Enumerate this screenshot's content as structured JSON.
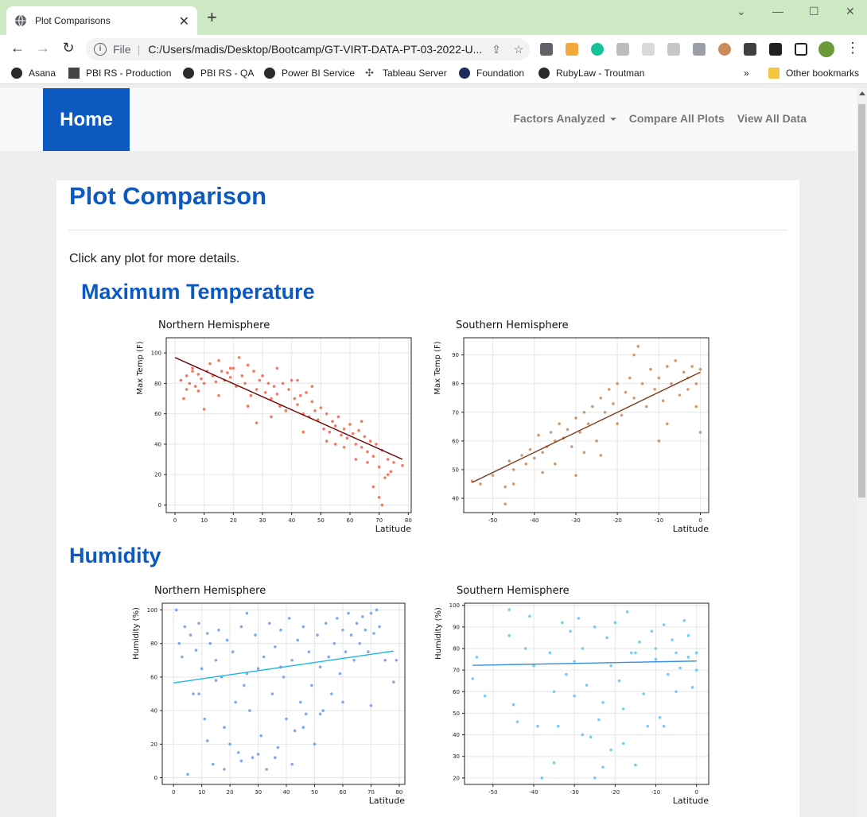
{
  "browser": {
    "tab_title": "Plot Comparisons",
    "new_tab": "+",
    "address_label": "File",
    "address": "C:/Users/madis/Desktop/Bootcamp/GT-VIRT-DATA-PT-03-2022-U...",
    "bookmarks": [
      "Asana",
      "PBI RS - Production",
      "PBI RS - QA",
      "Power BI Service",
      "Tableau Server",
      "Foundation",
      "RubyLaw - Troutman"
    ],
    "bookmarks_more": "»",
    "other_bookmarks": "Other bookmarks"
  },
  "navbar": {
    "brand": "Home",
    "links": [
      "Factors Analyzed",
      "Compare All Plots",
      "View All Data"
    ]
  },
  "page": {
    "title": "Plot Comparison",
    "intro": "Click any plot for more details."
  },
  "sections": {
    "max_temp": "Maximum Temperature",
    "humidity": "Humidity"
  },
  "chart_data": [
    {
      "type": "scatter",
      "title": "Northern Hemisphere",
      "xlabel": "Latitude",
      "ylabel": "Max Temp (F)",
      "xlim": [
        -3,
        81
      ],
      "ylim": [
        -5,
        110
      ],
      "xticks": [
        0,
        10,
        20,
        30,
        40,
        50,
        60,
        70,
        80
      ],
      "yticks": [
        0,
        20,
        40,
        60,
        80,
        100
      ],
      "color": "#f0634a",
      "regression": {
        "x": [
          0,
          78
        ],
        "y": [
          97,
          30
        ],
        "color": "#6b0000"
      },
      "points": [
        [
          2,
          82
        ],
        [
          3,
          70
        ],
        [
          4,
          85
        ],
        [
          5,
          80
        ],
        [
          6,
          88
        ],
        [
          7,
          78
        ],
        [
          8,
          86
        ],
        [
          9,
          83
        ],
        [
          10,
          80
        ],
        [
          11,
          88
        ],
        [
          12,
          93
        ],
        [
          13,
          85
        ],
        [
          14,
          81
        ],
        [
          15,
          95
        ],
        [
          16,
          88
        ],
        [
          17,
          82
        ],
        [
          18,
          87
        ],
        [
          19,
          84
        ],
        [
          20,
          90
        ],
        [
          21,
          78
        ],
        [
          22,
          97
        ],
        [
          23,
          85
        ],
        [
          24,
          80
        ],
        [
          25,
          92
        ],
        [
          26,
          72
        ],
        [
          27,
          88
        ],
        [
          28,
          76
        ],
        [
          29,
          82
        ],
        [
          30,
          85
        ],
        [
          31,
          74
        ],
        [
          32,
          80
        ],
        [
          33,
          70
        ],
        [
          34,
          78
        ],
        [
          35,
          73
        ],
        [
          36,
          65
        ],
        [
          37,
          80
        ],
        [
          38,
          62
        ],
        [
          39,
          76
        ],
        [
          40,
          82
        ],
        [
          41,
          70
        ],
        [
          42,
          66
        ],
        [
          43,
          72
        ],
        [
          44,
          60
        ],
        [
          45,
          74
        ],
        [
          46,
          58
        ],
        [
          47,
          68
        ],
        [
          48,
          62
        ],
        [
          49,
          56
        ],
        [
          50,
          64
        ],
        [
          51,
          50
        ],
        [
          52,
          60
        ],
        [
          53,
          48
        ],
        [
          54,
          55
        ],
        [
          55,
          52
        ],
        [
          56,
          58
        ],
        [
          57,
          46
        ],
        [
          58,
          50
        ],
        [
          59,
          44
        ],
        [
          60,
          53
        ],
        [
          61,
          47
        ],
        [
          62,
          40
        ],
        [
          63,
          49
        ],
        [
          64,
          38
        ],
        [
          65,
          45
        ],
        [
          66,
          35
        ],
        [
          67,
          42
        ],
        [
          68,
          32
        ],
        [
          69,
          40
        ],
        [
          70,
          25
        ],
        [
          71,
          36
        ],
        [
          72,
          18
        ],
        [
          73,
          30
        ],
        [
          74,
          22
        ],
        [
          75,
          28
        ],
        [
          70,
          5
        ],
        [
          71,
          0
        ],
        [
          68,
          12
        ],
        [
          6,
          90
        ],
        [
          8,
          75
        ],
        [
          15,
          72
        ],
        [
          25,
          65
        ],
        [
          28,
          54
        ],
        [
          35,
          90
        ],
        [
          42,
          82
        ],
        [
          47,
          78
        ],
        [
          55,
          40
        ],
        [
          58,
          38
        ],
        [
          62,
          30
        ],
        [
          66,
          28
        ],
        [
          4,
          76
        ],
        [
          10,
          63
        ],
        [
          19,
          90
        ],
        [
          33,
          58
        ],
        [
          44,
          48
        ],
        [
          52,
          42
        ],
        [
          64,
          55
        ],
        [
          73,
          20
        ],
        [
          78,
          26
        ]
      ]
    },
    {
      "type": "scatter",
      "title": "Southern Hemisphere",
      "xlabel": "Latitude",
      "ylabel": "Max Temp (F)",
      "xlim": [
        -57,
        2
      ],
      "ylim": [
        35,
        96
      ],
      "xticks": [
        -50,
        -40,
        -30,
        -20,
        -10,
        0
      ],
      "yticks": [
        40,
        50,
        60,
        70,
        80,
        90
      ],
      "color": "#c68a5c",
      "regression": {
        "x": [
          -55,
          0
        ],
        "y": [
          45.5,
          84
        ],
        "color": "#7a3b1a"
      },
      "points": [
        [
          -55,
          46
        ],
        [
          -53,
          45
        ],
        [
          -50,
          48
        ],
        [
          -47,
          38
        ],
        [
          -47,
          44
        ],
        [
          -46,
          53
        ],
        [
          -45,
          50
        ],
        [
          -43,
          55
        ],
        [
          -42,
          52
        ],
        [
          -41,
          57
        ],
        [
          -40,
          54
        ],
        [
          -39,
          62
        ],
        [
          -38,
          56
        ],
        [
          -37,
          58
        ],
        [
          -36,
          63
        ],
        [
          -35,
          60
        ],
        [
          -34,
          66
        ],
        [
          -33,
          61
        ],
        [
          -32,
          64
        ],
        [
          -31,
          58
        ],
        [
          -30,
          68
        ],
        [
          -29,
          63
        ],
        [
          -28,
          70
        ],
        [
          -27,
          66
        ],
        [
          -26,
          72
        ],
        [
          -25,
          60
        ],
        [
          -24,
          75
        ],
        [
          -23,
          70
        ],
        [
          -22,
          78
        ],
        [
          -21,
          73
        ],
        [
          -20,
          80
        ],
        [
          -19,
          69
        ],
        [
          -18,
          77
        ],
        [
          -17,
          82
        ],
        [
          -16,
          75
        ],
        [
          -15,
          93
        ],
        [
          -14,
          80
        ],
        [
          -13,
          72
        ],
        [
          -12,
          85
        ],
        [
          -11,
          78
        ],
        [
          -10,
          82
        ],
        [
          -9,
          74
        ],
        [
          -8,
          86
        ],
        [
          -7,
          80
        ],
        [
          -6,
          88
        ],
        [
          -5,
          76
        ],
        [
          -4,
          84
        ],
        [
          -3,
          82
        ],
        [
          -2,
          86
        ],
        [
          -1,
          80
        ],
        [
          0,
          85
        ],
        [
          0,
          63
        ],
        [
          -10,
          60
        ],
        [
          -20,
          66
        ],
        [
          -30,
          48
        ],
        [
          -35,
          52
        ],
        [
          -45,
          45
        ],
        [
          -24,
          55
        ],
        [
          -16,
          90
        ],
        [
          -8,
          66
        ],
        [
          -3,
          78
        ],
        [
          -1,
          72
        ],
        [
          -28,
          56
        ],
        [
          -38,
          49
        ]
      ]
    },
    {
      "type": "scatter",
      "title": "Northern Hemisphere",
      "xlabel": "Latitude",
      "ylabel": "Humidity (%)",
      "xlim": [
        -4,
        82
      ],
      "ylim": [
        -4,
        104
      ],
      "xticks": [
        0,
        10,
        20,
        30,
        40,
        50,
        60,
        70,
        80
      ],
      "yticks": [
        0,
        20,
        40,
        60,
        80,
        100
      ],
      "color": "#6c9be8",
      "regression": {
        "x": [
          0,
          78
        ],
        "y": [
          56.5,
          75.5
        ],
        "color": "#1bb6e8"
      },
      "points": [
        [
          1,
          100
        ],
        [
          2,
          80
        ],
        [
          3,
          72
        ],
        [
          4,
          90
        ],
        [
          5,
          2
        ],
        [
          6,
          85
        ],
        [
          7,
          50
        ],
        [
          8,
          76
        ],
        [
          9,
          92
        ],
        [
          10,
          65
        ],
        [
          11,
          35
        ],
        [
          12,
          86
        ],
        [
          13,
          80
        ],
        [
          14,
          8
        ],
        [
          15,
          70
        ],
        [
          16,
          88
        ],
        [
          17,
          60
        ],
        [
          18,
          30
        ],
        [
          19,
          82
        ],
        [
          20,
          20
        ],
        [
          21,
          75
        ],
        [
          22,
          45
        ],
        [
          23,
          15
        ],
        [
          24,
          90
        ],
        [
          25,
          55
        ],
        [
          26,
          98
        ],
        [
          27,
          40
        ],
        [
          28,
          12
        ],
        [
          29,
          85
        ],
        [
          30,
          65
        ],
        [
          31,
          25
        ],
        [
          32,
          72
        ],
        [
          33,
          5
        ],
        [
          34,
          92
        ],
        [
          35,
          50
        ],
        [
          36,
          78
        ],
        [
          37,
          18
        ],
        [
          38,
          88
        ],
        [
          39,
          60
        ],
        [
          40,
          35
        ],
        [
          41,
          95
        ],
        [
          42,
          70
        ],
        [
          43,
          28
        ],
        [
          44,
          82
        ],
        [
          45,
          45
        ],
        [
          46,
          90
        ],
        [
          47,
          38
        ],
        [
          48,
          75
        ],
        [
          49,
          55
        ],
        [
          50,
          20
        ],
        [
          51,
          85
        ],
        [
          52,
          66
        ],
        [
          53,
          40
        ],
        [
          54,
          92
        ],
        [
          55,
          72
        ],
        [
          56,
          50
        ],
        [
          57,
          80
        ],
        [
          58,
          95
        ],
        [
          59,
          62
        ],
        [
          60,
          88
        ],
        [
          61,
          75
        ],
        [
          62,
          98
        ],
        [
          63,
          85
        ],
        [
          64,
          70
        ],
        [
          65,
          92
        ],
        [
          66,
          80
        ],
        [
          67,
          96
        ],
        [
          68,
          88
        ],
        [
          69,
          75
        ],
        [
          70,
          98
        ],
        [
          71,
          86
        ],
        [
          72,
          100
        ],
        [
          73,
          90
        ],
        [
          75,
          70
        ],
        [
          78,
          57
        ],
        [
          79,
          70
        ],
        [
          18,
          5
        ],
        [
          24,
          10
        ],
        [
          36,
          12
        ],
        [
          46,
          30
        ],
        [
          52,
          38
        ],
        [
          60,
          45
        ],
        [
          70,
          43
        ],
        [
          12,
          22
        ],
        [
          30,
          14
        ],
        [
          42,
          8
        ],
        [
          9,
          50
        ],
        [
          15,
          58
        ],
        [
          26,
          62
        ],
        [
          38,
          66
        ]
      ]
    },
    {
      "type": "scatter",
      "title": "Southern Hemisphere",
      "xlabel": "Latitude",
      "ylabel": "Humidity (%)",
      "xlim": [
        -57,
        3
      ],
      "ylim": [
        17,
        101
      ],
      "xticks": [
        -50,
        -40,
        -30,
        -20,
        -10,
        0
      ],
      "yticks": [
        20,
        30,
        40,
        50,
        60,
        70,
        80,
        90,
        100
      ],
      "color": "#5fc4f0",
      "regression": {
        "x": [
          -55,
          0
        ],
        "y": [
          72.2,
          74.2
        ],
        "color": "#3a8fe0"
      },
      "points": [
        [
          -55,
          66
        ],
        [
          -54,
          76
        ],
        [
          -52,
          58
        ],
        [
          -46,
          98
        ],
        [
          -46,
          86
        ],
        [
          -45,
          54
        ],
        [
          -42,
          80
        ],
        [
          -41,
          95
        ],
        [
          -39,
          44
        ],
        [
          -38,
          20
        ],
        [
          -36,
          78
        ],
        [
          -35,
          60
        ],
        [
          -35,
          27
        ],
        [
          -34,
          44
        ],
        [
          -33,
          92
        ],
        [
          -32,
          68
        ],
        [
          -31,
          88
        ],
        [
          -30,
          74
        ],
        [
          -29,
          94
        ],
        [
          -28,
          80
        ],
        [
          -27,
          63
        ],
        [
          -26,
          39
        ],
        [
          -25,
          90
        ],
        [
          -24,
          47
        ],
        [
          -23,
          25
        ],
        [
          -23,
          55
        ],
        [
          -22,
          85
        ],
        [
          -21,
          72
        ],
        [
          -21,
          33
        ],
        [
          -20,
          92
        ],
        [
          -19,
          65
        ],
        [
          -18,
          52
        ],
        [
          -17,
          97
        ],
        [
          -16,
          78
        ],
        [
          -15,
          26
        ],
        [
          -14,
          83
        ],
        [
          -13,
          59
        ],
        [
          -12,
          44
        ],
        [
          -11,
          88
        ],
        [
          -10,
          75
        ],
        [
          -9,
          48
        ],
        [
          -8,
          91
        ],
        [
          -7,
          68
        ],
        [
          -6,
          84
        ],
        [
          -5,
          78
        ],
        [
          -4,
          71
        ],
        [
          -3,
          93
        ],
        [
          -2,
          86
        ],
        [
          -1,
          62
        ],
        [
          0,
          78
        ],
        [
          -30,
          58
        ],
        [
          -28,
          40
        ],
        [
          -18,
          36
        ],
        [
          -8,
          44
        ],
        [
          -5,
          60
        ],
        [
          -2,
          76
        ],
        [
          -40,
          72
        ],
        [
          -44,
          46
        ],
        [
          -25,
          20
        ],
        [
          -15,
          78
        ],
        [
          -10,
          80
        ],
        [
          0,
          70
        ]
      ]
    }
  ]
}
